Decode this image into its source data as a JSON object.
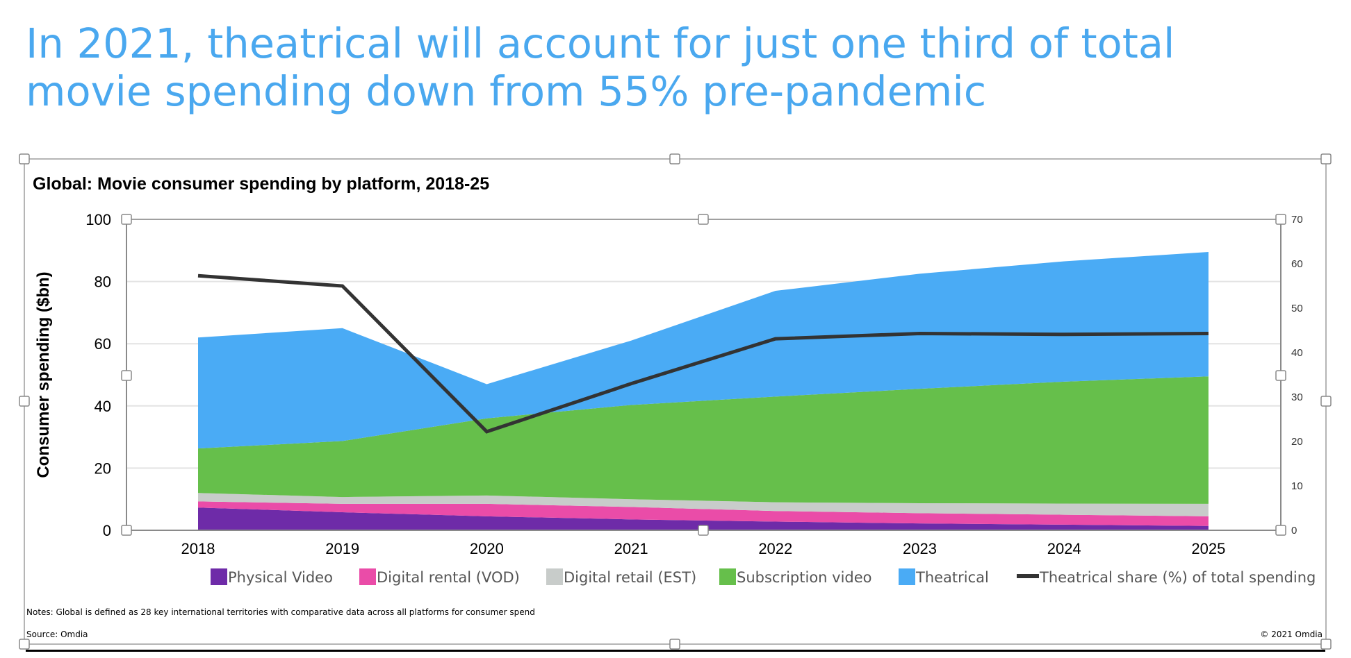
{
  "slide_title": "In 2021, theatrical will account for just one third of total movie spending down from 55% pre-pandemic",
  "chart_data": {
    "type": "area",
    "stacked": true,
    "title": "Global: Movie consumer spending by platform, 2018-25",
    "ylabel": "Consumer spending ($bn)",
    "ylim": [
      0,
      100
    ],
    "yticks": [
      0,
      20,
      40,
      60,
      80,
      100
    ],
    "y2lim": [
      0,
      70
    ],
    "y2ticks": [
      0,
      10,
      20,
      30,
      40,
      50,
      60,
      70
    ],
    "categories": [
      "2018",
      "2019",
      "2020",
      "2021",
      "2022",
      "2023",
      "2024",
      "2025"
    ],
    "series": [
      {
        "name": "Physical Video",
        "type": "area",
        "color": "#6e2ba8",
        "values": [
          7.3,
          5.8,
          4.5,
          3.5,
          2.8,
          2.2,
          1.8,
          1.4
        ]
      },
      {
        "name": "Digital rental (VOD)",
        "type": "area",
        "color": "#ea4ca8",
        "values": [
          2.0,
          2.7,
          4.0,
          4.0,
          3.4,
          3.3,
          3.2,
          3.1
        ]
      },
      {
        "name": "Digital retail (EST)",
        "type": "area",
        "color": "#c8ccca",
        "values": [
          2.7,
          2.2,
          2.7,
          2.5,
          2.8,
          3.2,
          3.6,
          4.0
        ]
      },
      {
        "name": "Subscription video",
        "type": "area",
        "color": "#66bf4b",
        "values": [
          14.3,
          18.0,
          24.8,
          30.3,
          34.0,
          36.8,
          39.2,
          41.0
        ]
      },
      {
        "name": "Theatrical",
        "type": "area",
        "color": "#4aabf5",
        "values": [
          35.7,
          36.3,
          11.0,
          20.7,
          34.0,
          37.0,
          38.7,
          40.0
        ]
      },
      {
        "name": "Theatrical share (%) of total spending",
        "type": "line",
        "axis": "right",
        "color": "#333333",
        "values": [
          57.3,
          55.0,
          22.2,
          33.0,
          43.1,
          44.3,
          44.1,
          44.3
        ]
      }
    ],
    "grid": true,
    "legend_position": "bottom",
    "notes": "Notes: Global is defined as 28 key international territories with comparative data across all platforms for consumer spend",
    "source": "Source: Omdia",
    "copyright": "© 2021 Omdia"
  }
}
